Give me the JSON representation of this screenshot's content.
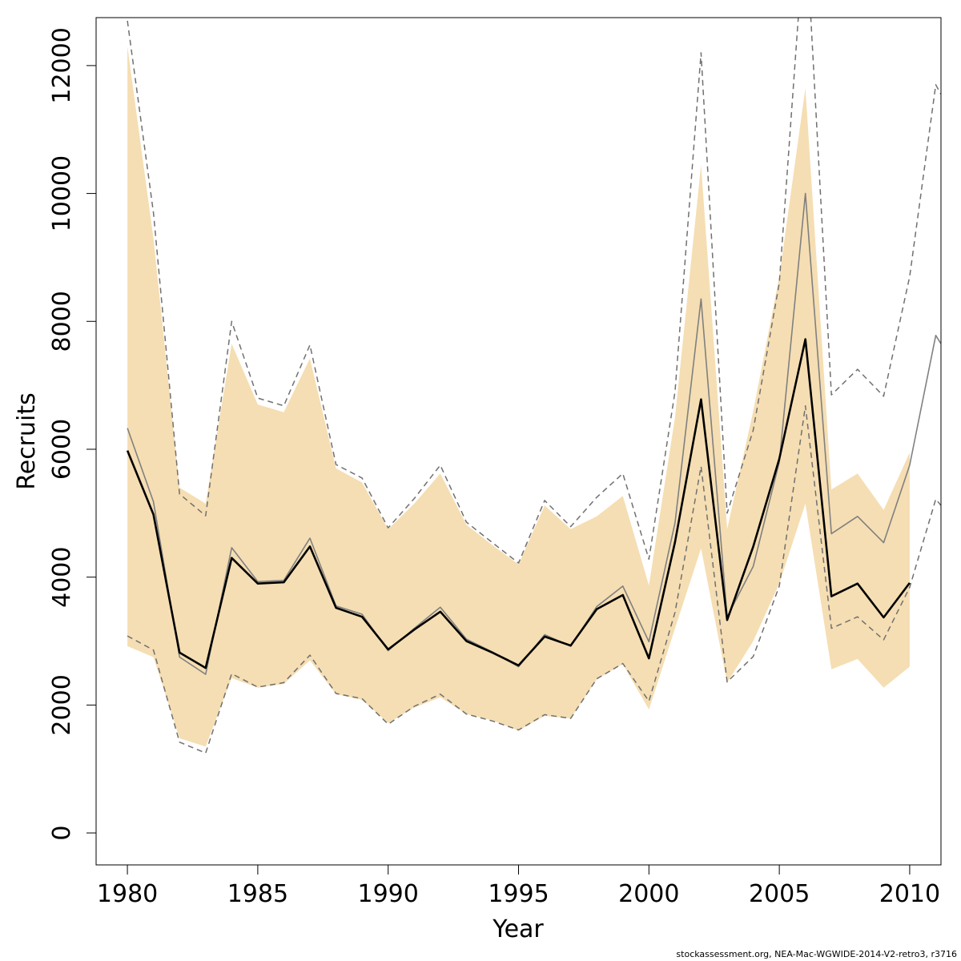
{
  "chart_data": {
    "type": "line",
    "xlabel": "Year",
    "ylabel": "Recruits",
    "xlim": [
      1978.8,
      2011.2
    ],
    "ylim": [
      -500,
      12750
    ],
    "x_ticks": [
      1980,
      1985,
      1990,
      1995,
      2000,
      2005,
      2010
    ],
    "y_ticks": [
      0,
      2000,
      4000,
      6000,
      8000,
      10000,
      12000
    ],
    "grid": false,
    "band_color": "#f5deb3",
    "x_band": [
      1980,
      1981,
      1982,
      1983,
      1984,
      1985,
      1986,
      1987,
      1988,
      1989,
      1990,
      1991,
      1992,
      1993,
      1994,
      1995,
      1996,
      1997,
      1998,
      1999,
      2000,
      2001,
      2002,
      2003,
      2004,
      2005,
      2006,
      2007,
      2008,
      2009,
      2010
    ],
    "band": {
      "upper": [
        12300,
        9300,
        5400,
        5150,
        7650,
        6700,
        6580,
        7420,
        5700,
        5480,
        4750,
        5150,
        5620,
        4820,
        4500,
        4200,
        5120,
        4750,
        4950,
        5270,
        3870,
        6500,
        10450,
        4750,
        6600,
        8700,
        11650,
        5370,
        5620,
        5050,
        5950
      ],
      "lower": [
        2920,
        2750,
        1480,
        1350,
        2420,
        2270,
        2330,
        2700,
        2170,
        2080,
        1720,
        1960,
        2120,
        1860,
        1760,
        1600,
        1830,
        1790,
        2400,
        2640,
        1930,
        3200,
        4450,
        2350,
        3000,
        3900,
        5150,
        2560,
        2720,
        2270,
        2600
      ]
    },
    "series": [
      {
        "style": "solid-black",
        "x": [
          1980,
          1981,
          1982,
          1983,
          1984,
          1985,
          1986,
          1987,
          1988,
          1989,
          1990,
          1991,
          1992,
          1993,
          1994,
          1995,
          1996,
          1997,
          1998,
          1999,
          2000,
          2001,
          2002,
          2003,
          2004,
          2005,
          2006,
          2007,
          2008,
          2009,
          2010
        ],
        "values": [
          5980,
          4980,
          2820,
          2580,
          4300,
          3900,
          3920,
          4480,
          3520,
          3380,
          2870,
          3180,
          3460,
          3000,
          2820,
          2620,
          3070,
          2930,
          3500,
          3720,
          2730,
          4550,
          6780,
          3330,
          4480,
          5850,
          7720,
          3700,
          3900,
          3370,
          3910
        ]
      },
      {
        "style": "solid-grey",
        "x": [
          1980,
          1981,
          1982,
          1983,
          1984,
          1985,
          1986,
          1987,
          1988,
          1989,
          1990,
          1991,
          1992,
          1993,
          1994,
          1995,
          1996,
          1997,
          1998,
          1999,
          2000,
          2001,
          2002,
          2003,
          2004,
          2005,
          2006,
          2007,
          2008,
          2009,
          2010,
          2011,
          2011.2
        ],
        "values": [
          6330,
          5180,
          2750,
          2480,
          4460,
          3930,
          3950,
          4610,
          3550,
          3420,
          2850,
          3200,
          3530,
          3030,
          2830,
          2600,
          3100,
          2920,
          3540,
          3860,
          2990,
          4850,
          8350,
          3380,
          4170,
          5800,
          10000,
          4680,
          4950,
          4540,
          5750,
          7780,
          7650
        ]
      },
      {
        "style": "dashed-grey-upper",
        "x": [
          1980,
          1981,
          1982,
          1983,
          1984,
          1985,
          1986,
          1987,
          1988,
          1989,
          1990,
          1991,
          1992,
          1993,
          1994,
          1995,
          1996,
          1997,
          1998,
          1999,
          2000,
          2001,
          2002,
          2003,
          2004,
          2005,
          2006,
          2007,
          2008,
          2009,
          2010,
          2011,
          2011.2
        ],
        "values": [
          12700,
          9700,
          5300,
          4960,
          8000,
          6800,
          6680,
          7630,
          5760,
          5550,
          4770,
          5230,
          5750,
          4860,
          4540,
          4220,
          5200,
          4790,
          5250,
          5620,
          4280,
          6900,
          12200,
          5000,
          6300,
          8600,
          14300,
          6850,
          7250,
          6830,
          8700,
          11700,
          11550
        ]
      },
      {
        "style": "dashed-grey-lower",
        "x": [
          1980,
          1981,
          1982,
          1983,
          1984,
          1985,
          1986,
          1987,
          1988,
          1989,
          1990,
          1991,
          1992,
          1993,
          1994,
          1995,
          1996,
          1997,
          1998,
          1999,
          2000,
          2001,
          2002,
          2003,
          2004,
          2005,
          2006,
          2007,
          2008,
          2009,
          2010,
          2011,
          2011.2
        ],
        "values": [
          3080,
          2860,
          1420,
          1250,
          2490,
          2280,
          2350,
          2780,
          2180,
          2100,
          1700,
          1980,
          2170,
          1860,
          1750,
          1610,
          1850,
          1790,
          2410,
          2650,
          2060,
          3450,
          5730,
          2360,
          2760,
          3860,
          6680,
          3200,
          3380,
          3020,
          3840,
          5220,
          5120
        ]
      }
    ]
  },
  "footer": {
    "credit": "stockassessment.org, NEA-Mac-WGWIDE-2014-V2-retro3, r3716"
  }
}
